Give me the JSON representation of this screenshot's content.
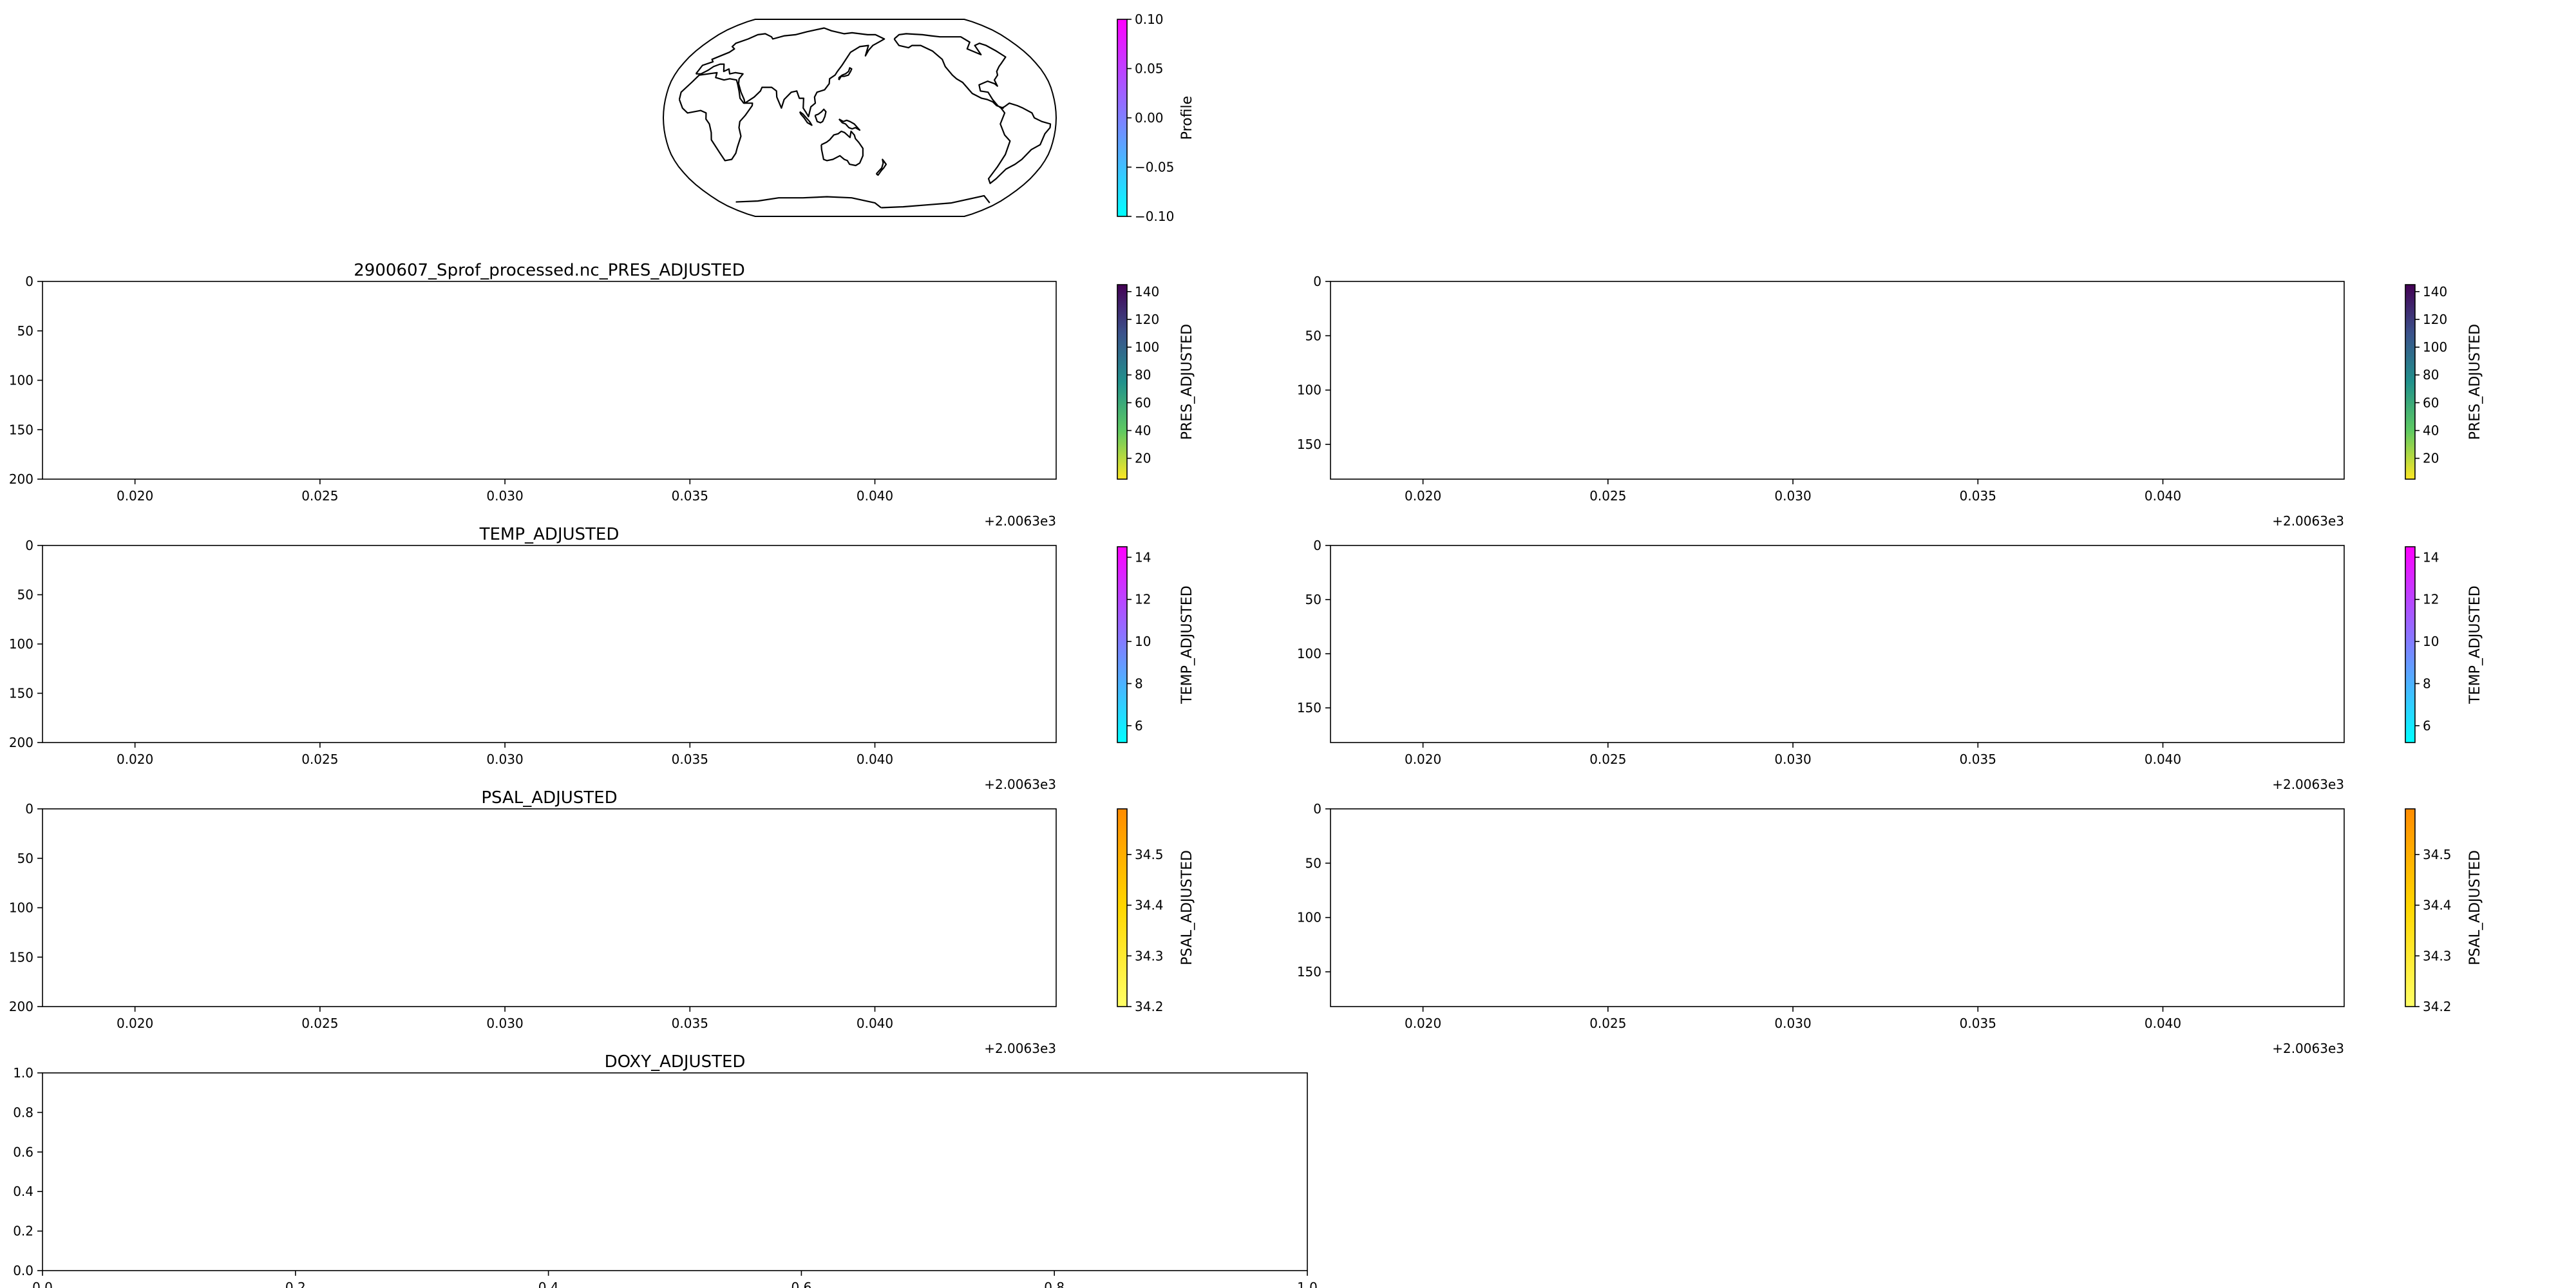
{
  "chart_data": [
    {
      "id": "map",
      "type": "map",
      "projection": "robinson",
      "colorbar": {
        "label": "Profile",
        "min": -0.1,
        "max": 0.1,
        "ticks": [
          -0.1,
          -0.05,
          0.0,
          0.05,
          0.1
        ],
        "tick_labels": [
          "−0.10",
          "−0.05",
          "0.00",
          "0.05",
          "0.10"
        ],
        "colors": [
          "#00ffff",
          "#ff00ff"
        ]
      }
    },
    {
      "id": "pres-left",
      "type": "scatter",
      "title": "2900607_Sprof_processed.nc_PRES_ADJUSTED",
      "xlim": [
        2006.3175,
        2006.3449
      ],
      "ylim": [
        200,
        0
      ],
      "x_ticks": [
        2006.32,
        2006.325,
        2006.33,
        2006.335,
        2006.34
      ],
      "x_tick_labels": [
        "0.020",
        "0.025",
        "0.030",
        "0.035",
        "0.040"
      ],
      "x_offset": "+2.0063e3",
      "y_ticks": [
        0,
        50,
        100,
        150,
        200
      ],
      "y_tick_labels": [
        "0",
        "50",
        "100",
        "150",
        "200"
      ],
      "colorbar": {
        "label": "PRES_ADJUSTED",
        "min": 5,
        "max": 145,
        "ticks": [
          20,
          40,
          60,
          80,
          100,
          120,
          140
        ],
        "tick_labels": [
          "20",
          "40",
          "60",
          "80",
          "100",
          "120",
          "140"
        ],
        "colors": [
          "#fde725",
          "#5ec962",
          "#21918c",
          "#3b528b",
          "#440154"
        ]
      }
    },
    {
      "id": "pres-right",
      "type": "scatter",
      "title": "",
      "xlim": [
        2006.3175,
        2006.3449
      ],
      "ylim": [
        182,
        0
      ],
      "x_ticks": [
        2006.32,
        2006.325,
        2006.33,
        2006.335,
        2006.34
      ],
      "x_tick_labels": [
        "0.020",
        "0.025",
        "0.030",
        "0.035",
        "0.040"
      ],
      "x_offset": "+2.0063e3",
      "y_ticks": [
        0,
        50,
        100,
        150
      ],
      "y_tick_labels": [
        "0",
        "50",
        "100",
        "150"
      ],
      "colorbar": {
        "label": "PRES_ADJUSTED",
        "min": 5,
        "max": 145,
        "ticks": [
          20,
          40,
          60,
          80,
          100,
          120,
          140
        ],
        "tick_labels": [
          "20",
          "40",
          "60",
          "80",
          "100",
          "120",
          "140"
        ],
        "colors": [
          "#fde725",
          "#5ec962",
          "#21918c",
          "#3b528b",
          "#440154"
        ]
      }
    },
    {
      "id": "temp-left",
      "type": "scatter",
      "title": "TEMP_ADJUSTED",
      "xlim": [
        2006.3175,
        2006.3449
      ],
      "ylim": [
        200,
        0
      ],
      "x_ticks": [
        2006.32,
        2006.325,
        2006.33,
        2006.335,
        2006.34
      ],
      "x_tick_labels": [
        "0.020",
        "0.025",
        "0.030",
        "0.035",
        "0.040"
      ],
      "x_offset": "+2.0063e3",
      "y_ticks": [
        0,
        50,
        100,
        150,
        200
      ],
      "y_tick_labels": [
        "0",
        "50",
        "100",
        "150",
        "200"
      ],
      "colorbar": {
        "label": "TEMP_ADJUSTED",
        "min": 5.2,
        "max": 14.5,
        "ticks": [
          6,
          8,
          10,
          12,
          14
        ],
        "tick_labels": [
          "6",
          "8",
          "10",
          "12",
          "14"
        ],
        "colors": [
          "#00ffff",
          "#ff00ff"
        ]
      }
    },
    {
      "id": "temp-right",
      "type": "scatter",
      "title": "",
      "xlim": [
        2006.3175,
        2006.3449
      ],
      "ylim": [
        182,
        0
      ],
      "x_ticks": [
        2006.32,
        2006.325,
        2006.33,
        2006.335,
        2006.34
      ],
      "x_tick_labels": [
        "0.020",
        "0.025",
        "0.030",
        "0.035",
        "0.040"
      ],
      "x_offset": "+2.0063e3",
      "y_ticks": [
        0,
        50,
        100,
        150
      ],
      "y_tick_labels": [
        "0",
        "50",
        "100",
        "150"
      ],
      "colorbar": {
        "label": "TEMP_ADJUSTED",
        "min": 5.2,
        "max": 14.5,
        "ticks": [
          6,
          8,
          10,
          12,
          14
        ],
        "tick_labels": [
          "6",
          "8",
          "10",
          "12",
          "14"
        ],
        "colors": [
          "#00ffff",
          "#ff00ff"
        ]
      }
    },
    {
      "id": "psal-left",
      "type": "scatter",
      "title": "PSAL_ADJUSTED",
      "xlim": [
        2006.3175,
        2006.3449
      ],
      "ylim": [
        200,
        0
      ],
      "x_ticks": [
        2006.32,
        2006.325,
        2006.33,
        2006.335,
        2006.34
      ],
      "x_tick_labels": [
        "0.020",
        "0.025",
        "0.030",
        "0.035",
        "0.040"
      ],
      "x_offset": "+2.0063e3",
      "y_ticks": [
        0,
        50,
        100,
        150,
        200
      ],
      "y_tick_labels": [
        "0",
        "50",
        "100",
        "150",
        "200"
      ],
      "colorbar": {
        "label": "PSAL_ADJUSTED",
        "min": 34.2,
        "max": 34.59,
        "ticks": [
          34.2,
          34.3,
          34.4,
          34.5
        ],
        "tick_labels": [
          "34.2",
          "34.3",
          "34.4",
          "34.5"
        ],
        "colors": [
          "#ffff66",
          "#ffd700",
          "#ff8c00"
        ]
      }
    },
    {
      "id": "psal-right",
      "type": "scatter",
      "title": "",
      "xlim": [
        2006.3175,
        2006.3449
      ],
      "ylim": [
        182,
        0
      ],
      "x_ticks": [
        2006.32,
        2006.325,
        2006.33,
        2006.335,
        2006.34
      ],
      "x_tick_labels": [
        "0.020",
        "0.025",
        "0.030",
        "0.035",
        "0.040"
      ],
      "x_offset": "+2.0063e3",
      "y_ticks": [
        0,
        50,
        100,
        150
      ],
      "y_tick_labels": [
        "0",
        "50",
        "100",
        "150"
      ],
      "colorbar": {
        "label": "PSAL_ADJUSTED",
        "min": 34.2,
        "max": 34.59,
        "ticks": [
          34.2,
          34.3,
          34.4,
          34.5
        ],
        "tick_labels": [
          "34.2",
          "34.3",
          "34.4",
          "34.5"
        ],
        "colors": [
          "#ffff66",
          "#ffd700",
          "#ff8c00"
        ]
      }
    },
    {
      "id": "doxy",
      "type": "scatter",
      "title": "DOXY_ADJUSTED",
      "xlim": [
        0,
        1
      ],
      "ylim": [
        0,
        1
      ],
      "x_ticks": [
        0,
        0.2,
        0.4,
        0.6,
        0.8,
        1.0
      ],
      "x_tick_labels": [
        "0.0",
        "0.2",
        "0.4",
        "0.6",
        "0.8",
        "1.0"
      ],
      "x_offset": "",
      "y_ticks": [
        0,
        0.2,
        0.4,
        0.6,
        0.8,
        1.0
      ],
      "y_tick_labels": [
        "0.0",
        "0.2",
        "0.4",
        "0.6",
        "0.8",
        "1.0"
      ]
    }
  ]
}
